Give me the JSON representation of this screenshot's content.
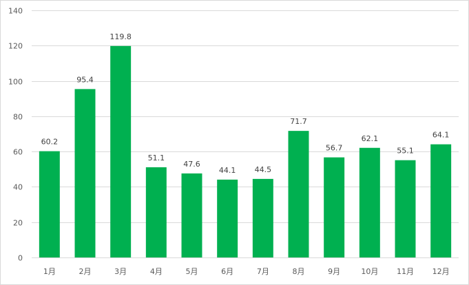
{
  "chart_data": {
    "type": "bar",
    "categories": [
      "1月",
      "2月",
      "3月",
      "4月",
      "5月",
      "6月",
      "7月",
      "8月",
      "9月",
      "10月",
      "11月",
      "12月"
    ],
    "values": [
      60.2,
      95.4,
      119.8,
      51.1,
      47.6,
      44.1,
      44.5,
      71.7,
      56.7,
      62.1,
      55.1,
      64.1
    ],
    "value_labels": [
      "60.2",
      "95.4",
      "119.8",
      "51.1",
      "47.6",
      "44.1",
      "44.5",
      "71.7",
      "56.7",
      "62.1",
      "55.1",
      "64.1"
    ],
    "y_ticks": [
      0,
      20,
      40,
      60,
      80,
      100,
      120,
      140
    ],
    "ylim": [
      0,
      140
    ],
    "grid": true,
    "legend": "none",
    "bar_color": "#00b050",
    "grid_color": "#d9d9d9",
    "title": "",
    "xlabel": "",
    "ylabel": ""
  }
}
